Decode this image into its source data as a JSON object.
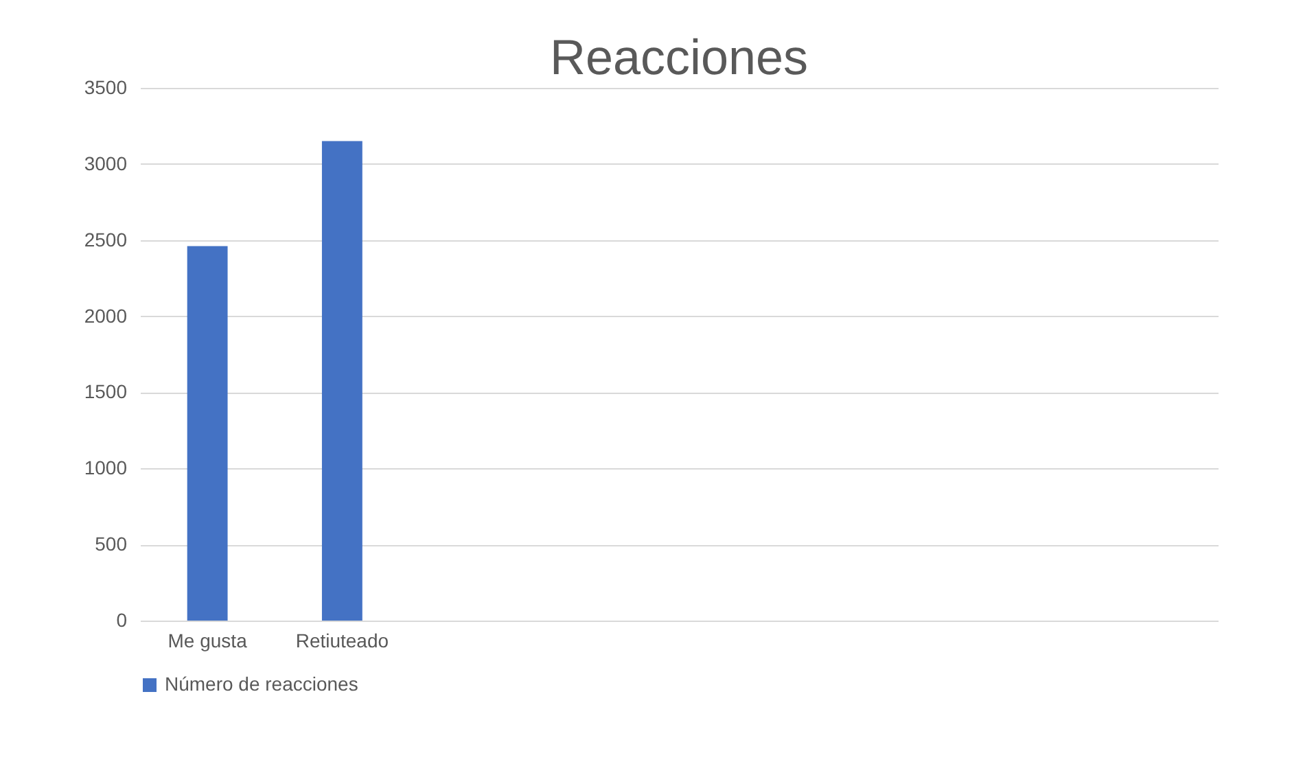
{
  "chart_data": {
    "type": "bar",
    "title": "Reacciones",
    "categories": [
      "Me gusta",
      "Retiuteado",
      null,
      null,
      null,
      null,
      null,
      null
    ],
    "series": [
      {
        "name": "Número de reacciones",
        "color": "#4472c4",
        "values": [
          2460,
          3150,
          null,
          null,
          null,
          null,
          null,
          null
        ]
      }
    ],
    "ylim": [
      0,
      3500
    ],
    "yticks": [
      0,
      500,
      1000,
      1500,
      2000,
      2500,
      3000,
      3500
    ],
    "grid": "y",
    "legend": "bottom"
  }
}
